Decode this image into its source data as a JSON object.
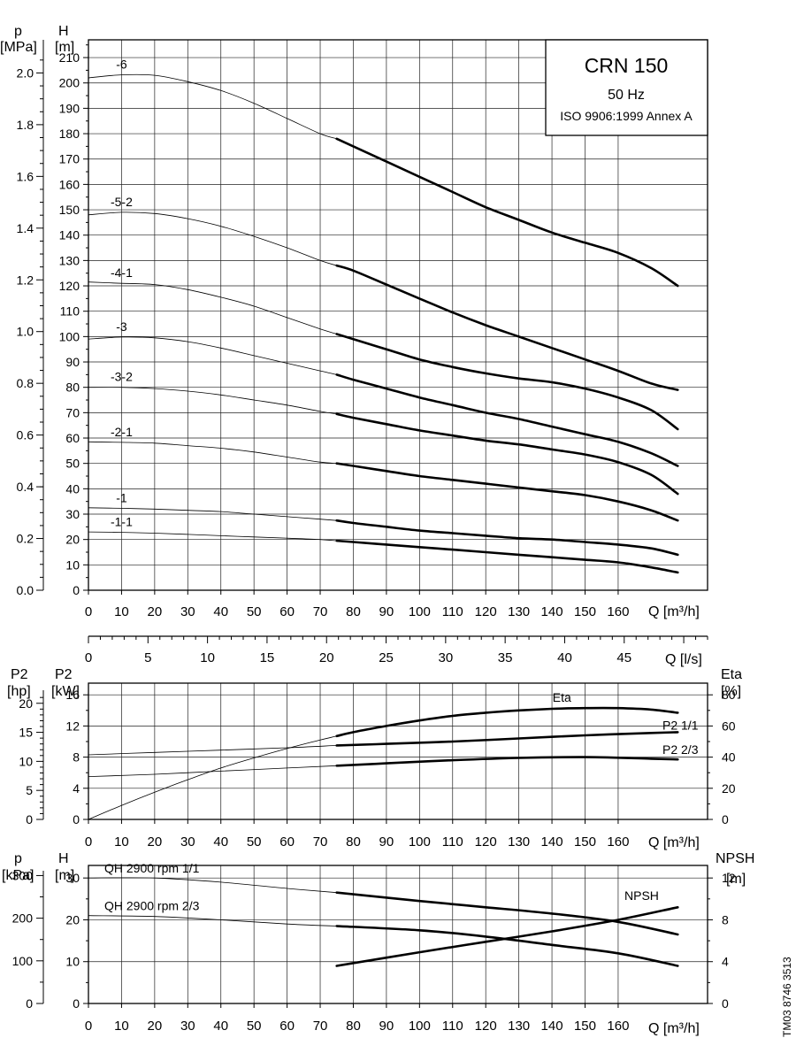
{
  "page": {
    "doc_code": "TM03 8746 3513"
  },
  "title_box": {
    "title": "CRN 150",
    "freq": "50 Hz",
    "standard": "ISO 9906:1999 Annex A"
  },
  "axes": {
    "q_label": "Q [m³/h]",
    "ls_label": "Q [l/s]",
    "p_label": "p",
    "mpa_unit": "[MPa]",
    "h_label": "H",
    "m_unit": "[m]",
    "p2_label": "P2",
    "hp_unit": "[hp]",
    "kw_unit": "[kW]",
    "eta_label": "Eta",
    "pct_unit": "[%]",
    "kpa_unit": "[kPa]",
    "npsh_label": "NPSH"
  },
  "colors": {
    "ink": "#000000",
    "background": "#ffffff"
  },
  "chart_data": [
    {
      "type": "line",
      "name": "head-curves",
      "x_label": "Q [m³/h]",
      "y_label": "H [m]",
      "y2_label": "p [MPa]",
      "xlim": [
        0,
        187
      ],
      "ylim": [
        0,
        217
      ],
      "x_ticks": [
        0,
        10,
        20,
        30,
        40,
        50,
        60,
        70,
        80,
        90,
        100,
        110,
        120,
        130,
        140,
        150,
        160
      ],
      "y_ticks": [
        0,
        10,
        20,
        30,
        40,
        50,
        60,
        70,
        80,
        90,
        100,
        110,
        120,
        130,
        140,
        150,
        160,
        170,
        180,
        190,
        200,
        210
      ],
      "p_ticks": [
        "0.0",
        "0.2",
        "0.4",
        "0.6",
        "0.8",
        "1.0",
        "1.2",
        "1.4",
        "1.6",
        "1.8",
        "2.0"
      ],
      "thick_from_q": 75,
      "series": [
        {
          "name": "-6",
          "x": [
            0,
            10,
            20,
            30,
            40,
            50,
            60,
            70,
            75,
            80,
            90,
            100,
            110,
            120,
            130,
            140,
            150,
            160,
            170,
            178
          ],
          "y": [
            202,
            203.2,
            203,
            200.5,
            197,
            192,
            186,
            180,
            178,
            175,
            169,
            163,
            157,
            151,
            146,
            141,
            137,
            133,
            127,
            120
          ]
        },
        {
          "name": "-5-2",
          "x": [
            0,
            10,
            20,
            30,
            40,
            50,
            60,
            70,
            75,
            80,
            90,
            100,
            110,
            120,
            130,
            140,
            150,
            160,
            170,
            178
          ],
          "y": [
            148,
            149,
            148.5,
            146.5,
            143.5,
            139.5,
            135,
            130,
            128,
            126,
            120.5,
            115,
            109.5,
            104.5,
            100,
            95.5,
            91,
            86.5,
            81.5,
            79
          ]
        },
        {
          "name": "-4-1",
          "x": [
            0,
            10,
            20,
            30,
            40,
            50,
            60,
            70,
            75,
            80,
            90,
            100,
            110,
            120,
            130,
            140,
            150,
            160,
            170,
            178
          ],
          "y": [
            121.5,
            121,
            120.5,
            118.5,
            115.5,
            112,
            107.5,
            103,
            101,
            99,
            95,
            91,
            88,
            85.5,
            83.5,
            82,
            79.5,
            76,
            71,
            63.5
          ]
        },
        {
          "name": "-3",
          "x": [
            0,
            10,
            20,
            30,
            40,
            50,
            60,
            70,
            75,
            80,
            90,
            100,
            110,
            120,
            130,
            140,
            150,
            160,
            170,
            178
          ],
          "y": [
            99,
            99.8,
            99.5,
            98,
            95.5,
            92.5,
            89.5,
            86.5,
            85,
            83,
            79.5,
            76,
            73,
            70,
            67.5,
            64.5,
            61.5,
            58.5,
            54,
            49
          ]
        },
        {
          "name": "-3-2",
          "x": [
            0,
            10,
            20,
            30,
            40,
            50,
            60,
            70,
            75,
            80,
            90,
            100,
            110,
            120,
            130,
            140,
            150,
            160,
            170,
            178
          ],
          "y": [
            80,
            80,
            79.5,
            78.5,
            77,
            75,
            73,
            70.5,
            69.5,
            68,
            65.5,
            63,
            61,
            59,
            57.5,
            55.5,
            53.5,
            50.5,
            45.5,
            38
          ]
        },
        {
          "name": "-2-1",
          "x": [
            0,
            10,
            20,
            30,
            40,
            50,
            60,
            70,
            75,
            80,
            90,
            100,
            110,
            120,
            130,
            140,
            150,
            160,
            170,
            178
          ],
          "y": [
            58.5,
            58.3,
            58,
            57,
            56,
            54.5,
            52.5,
            50.5,
            50,
            49,
            47,
            45,
            43.5,
            42,
            40.5,
            39,
            37.5,
            35,
            31.5,
            27.5
          ]
        },
        {
          "name": "-1",
          "x": [
            0,
            10,
            20,
            30,
            40,
            50,
            60,
            70,
            75,
            80,
            90,
            100,
            110,
            120,
            130,
            140,
            150,
            160,
            170,
            178
          ],
          "y": [
            32.5,
            32.3,
            32,
            31.5,
            31,
            30,
            29,
            28,
            27.5,
            26.5,
            25,
            23.5,
            22.5,
            21.5,
            20.5,
            20,
            19,
            18,
            16.5,
            14
          ]
        },
        {
          "name": "-1-1",
          "x": [
            0,
            10,
            20,
            30,
            40,
            50,
            60,
            70,
            75,
            80,
            90,
            100,
            110,
            120,
            130,
            140,
            150,
            160,
            170,
            178
          ],
          "y": [
            23,
            22.8,
            22.5,
            22,
            21.5,
            21,
            20.5,
            20,
            19.5,
            19,
            18,
            17,
            16,
            15,
            14,
            13,
            12,
            11,
            9,
            7
          ]
        }
      ]
    },
    {
      "type": "line",
      "name": "ls-scale",
      "x_label": "Q [l/s]",
      "xlim": [
        0,
        52
      ],
      "x_ticks": [
        0,
        5,
        10,
        15,
        20,
        25,
        30,
        35,
        40,
        45
      ]
    },
    {
      "type": "line",
      "name": "power-efficiency",
      "x_label": "Q [m³/h]",
      "y_label": "P2 [kW]",
      "y_left_outer_label": "P2 [hp]",
      "y_right_label": "Eta [%]",
      "xlim": [
        0,
        187
      ],
      "kw_lim": [
        0,
        17.5
      ],
      "kw_ticks": [
        0,
        4,
        8,
        12,
        16
      ],
      "hp_ticks": [
        0,
        5,
        10,
        15,
        20
      ],
      "eta_ticks": [
        0,
        20,
        40,
        60,
        80
      ],
      "x_ticks": [
        0,
        10,
        20,
        30,
        40,
        50,
        60,
        70,
        80,
        90,
        100,
        110,
        120,
        130,
        140,
        150,
        160
      ],
      "thick_from_q": 75,
      "series": [
        {
          "name": "Eta",
          "axis": "eta",
          "x": [
            0,
            10,
            20,
            30,
            40,
            50,
            60,
            70,
            75,
            80,
            90,
            100,
            110,
            120,
            130,
            140,
            150,
            160,
            170,
            178
          ],
          "y": [
            0,
            9,
            17.5,
            25.5,
            33,
            39.5,
            45.5,
            51,
            53.5,
            56,
            60,
            63.5,
            66.5,
            68.5,
            70,
            71,
            71.5,
            71.5,
            70.5,
            68.5
          ]
        },
        {
          "name": "P2 1/1",
          "axis": "kw",
          "x": [
            0,
            20,
            40,
            60,
            75,
            90,
            110,
            130,
            150,
            170,
            178
          ],
          "y": [
            8.3,
            8.6,
            8.9,
            9.2,
            9.5,
            9.7,
            10.0,
            10.4,
            10.8,
            11.1,
            11.2
          ]
        },
        {
          "name": "P2 2/3",
          "axis": "kw",
          "x": [
            0,
            20,
            40,
            60,
            75,
            90,
            110,
            130,
            150,
            170,
            178
          ],
          "y": [
            5.5,
            5.8,
            6.2,
            6.6,
            6.9,
            7.2,
            7.6,
            7.9,
            8.0,
            7.8,
            7.7
          ]
        }
      ]
    },
    {
      "type": "line",
      "name": "qh-npsh",
      "x_label": "Q [m³/h]",
      "y_label": "H [m]",
      "y_left_outer_label": "p [kPa]",
      "y_right_label": "NPSH [m]",
      "xlim": [
        0,
        187
      ],
      "h_lim": [
        0,
        33
      ],
      "h_ticks": [
        0,
        10,
        20,
        30
      ],
      "kpa_ticks": [
        0,
        100,
        200,
        300
      ],
      "npsh_ticks": [
        0,
        4,
        8,
        12
      ],
      "x_ticks": [
        0,
        10,
        20,
        30,
        40,
        50,
        60,
        70,
        80,
        90,
        100,
        110,
        120,
        130,
        140,
        150,
        160
      ],
      "thick_from_q": 75,
      "series": [
        {
          "name": "QH 2900 rpm 1/1",
          "axis": "h",
          "x": [
            0,
            20,
            40,
            60,
            75,
            100,
            120,
            140,
            160,
            178
          ],
          "y": [
            30,
            30,
            29,
            27.5,
            26.5,
            24.5,
            23,
            21.5,
            19.5,
            16.5
          ]
        },
        {
          "name": "QH 2900 rpm 2/3",
          "axis": "h",
          "x": [
            0,
            20,
            40,
            60,
            75,
            100,
            120,
            140,
            160,
            178
          ],
          "y": [
            21,
            20.8,
            20,
            19,
            18.5,
            17.5,
            16,
            14,
            12,
            9
          ]
        },
        {
          "name": "NPSH",
          "axis": "npsh",
          "x": [
            75,
            100,
            120,
            140,
            160,
            178
          ],
          "y": [
            3.6,
            4.9,
            5.9,
            6.9,
            8.0,
            9.2
          ]
        }
      ]
    }
  ]
}
